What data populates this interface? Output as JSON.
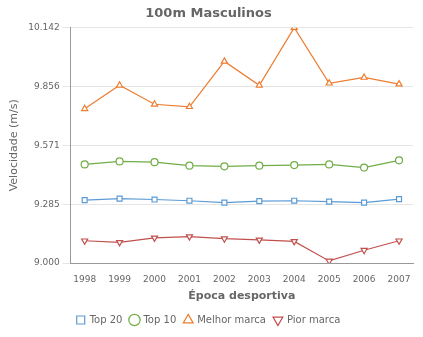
{
  "chart_data": {
    "type": "line",
    "title": "100m Masculinos",
    "x_label": "Época desportiva",
    "y_label": "Velocidade (m/s)",
    "x": [
      1998,
      1999,
      2000,
      2001,
      2002,
      2003,
      2004,
      2005,
      2006,
      2007
    ],
    "series": [
      {
        "name": "Top 20",
        "color": "#5b9bd5",
        "marker": "square",
        "values": [
          9.305,
          9.312,
          9.308,
          9.302,
          9.293,
          9.3,
          9.302,
          9.298,
          9.293,
          9.31
        ]
      },
      {
        "name": "Top 10",
        "color": "#70ad47",
        "marker": "circle",
        "values": [
          9.478,
          9.493,
          9.489,
          9.472,
          9.469,
          9.472,
          9.475,
          9.478,
          9.463,
          9.498
        ]
      },
      {
        "name": "Melhor marca",
        "color": "#ed7d31",
        "marker": "triangle",
        "values": [
          9.748,
          9.862,
          9.77,
          9.758,
          9.978,
          9.862,
          10.142,
          9.872,
          9.9,
          9.868
        ]
      },
      {
        "name": "Pior marca",
        "color": "#c0504d",
        "marker": "triangle_down",
        "values": [
          9.108,
          9.1,
          9.122,
          9.128,
          9.118,
          9.112,
          9.105,
          9.01,
          9.062,
          9.108
        ]
      }
    ],
    "xlim": [
      1997.6,
      2007.4
    ],
    "xticks": [
      1998,
      1999,
      2000,
      2001,
      2002,
      2003,
      2004,
      2005,
      2006,
      2007
    ],
    "ylim": [
      9.0,
      10.142
    ],
    "yticks": [
      {
        "value": 9.0,
        "label": "9.000"
      },
      9.285,
      9.571,
      9.856,
      10.142
    ],
    "grid": "y",
    "legend": "bottom"
  }
}
